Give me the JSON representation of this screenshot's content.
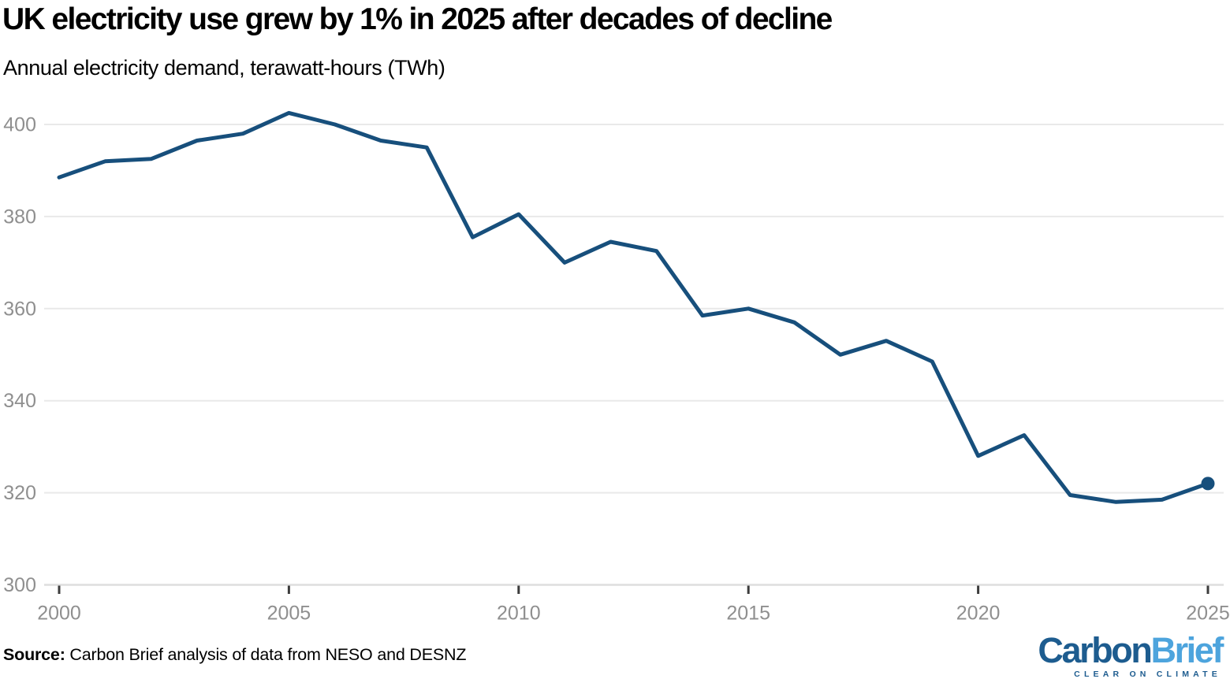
{
  "header": {
    "title": "UK electricity use grew by 1% in 2025 after decades of decline",
    "subtitle": "Annual electricity demand, terawatt-hours (TWh)"
  },
  "chart_data": {
    "type": "line",
    "title": "UK electricity use grew by 1% in 2025 after decades of decline",
    "subtitle": "Annual electricity demand, terawatt-hours (TWh)",
    "xlabel": "",
    "ylabel": "terawatt-hours (TWh)",
    "x": [
      2000,
      2001,
      2002,
      2003,
      2004,
      2005,
      2006,
      2007,
      2008,
      2009,
      2010,
      2011,
      2012,
      2013,
      2014,
      2015,
      2016,
      2017,
      2018,
      2019,
      2020,
      2021,
      2022,
      2023,
      2024,
      2025
    ],
    "series": [
      {
        "name": "Annual electricity demand (TWh)",
        "values": [
          388.5,
          392,
          392.5,
          396.5,
          398,
          402.5,
          400,
          396.5,
          395,
          375.5,
          380.5,
          370,
          374.5,
          372.5,
          358.5,
          360,
          357,
          350,
          353,
          348.5,
          328,
          332.5,
          319.5,
          318,
          318.5,
          322
        ]
      }
    ],
    "xlim": [
      2000,
      2025
    ],
    "ylim": [
      300,
      400
    ],
    "x_ticks": [
      2000,
      2005,
      2010,
      2015,
      2020,
      2025
    ],
    "y_ticks": [
      300,
      320,
      340,
      360,
      380,
      400
    ],
    "grid": "horizontal gridlines only",
    "legend": "none",
    "annotations": [
      "last data point (2025 = 322 TWh) marked with a filled circle"
    ],
    "colors": {
      "line": "#174f7c",
      "end_marker": "#174f7c",
      "gridline": "#e9e9e9",
      "axis_line": "#dedede",
      "tick_mark": "#3c3c3c",
      "tick_label": "#8f8f8f"
    }
  },
  "footer": {
    "source_label": "Source:",
    "source_text": " Carbon Brief analysis of data from NESO and DESNZ"
  },
  "logo": {
    "part1": "Carbon",
    "part2": "Brief",
    "tagline": "CLEAR ON CLIMATE",
    "dark_color": "#1d5c8f",
    "light_color": "#4da4dd"
  }
}
